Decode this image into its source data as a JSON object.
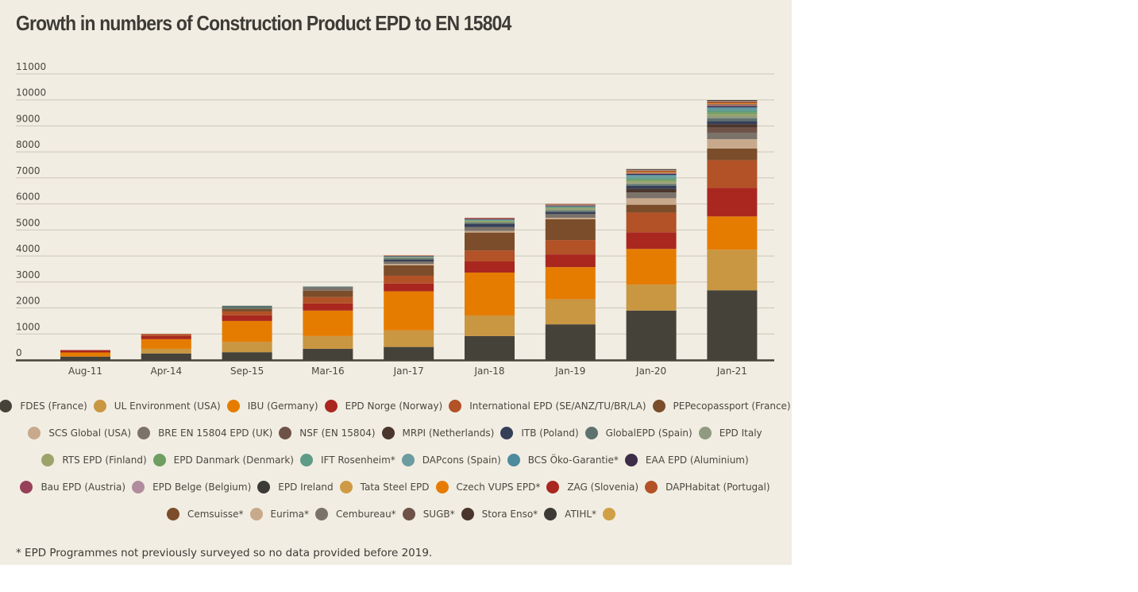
{
  "chart_data": {
    "type": "bar",
    "stacked": true,
    "title": "Growth in numbers of  Construction Product EPD to EN 15804",
    "xlabel": "",
    "ylabel": "",
    "ylim": [
      0,
      11000
    ],
    "yticks": [
      0,
      1000,
      2000,
      3000,
      4000,
      5000,
      6000,
      7000,
      8000,
      9000,
      10000,
      11000
    ],
    "ytick_labels": [
      "0",
      "1000",
      "2000",
      "3000",
      "4000",
      "5000",
      "6000",
      "7000",
      "8000",
      "9000",
      "10000",
      "11000"
    ],
    "grid": true,
    "legend_position": "bottom",
    "categories": [
      "Aug-11",
      "Apr-14",
      "Sep-15",
      "Mar-16",
      "Jan-17",
      "Jan-18",
      "Jan-19",
      "Jan-20",
      "Jan-21"
    ],
    "series": [
      {
        "name": "FDES (France)",
        "color": "#45423a",
        "values": [
          130,
          250,
          300,
          430,
          500,
          920,
          1370,
          1900,
          2680
        ]
      },
      {
        "name": "UL Environment (USA)",
        "color": "#c99642",
        "values": [
          0,
          180,
          400,
          490,
          640,
          790,
          970,
          1000,
          1560
        ]
      },
      {
        "name": "IBU (Germany)",
        "color": "#e57c00",
        "values": [
          160,
          370,
          800,
          980,
          1500,
          1650,
          1230,
          1370,
          1280
        ]
      },
      {
        "name": "EPD Norge (Norway)",
        "color": "#a9271f",
        "values": [
          90,
          120,
          215,
          275,
          300,
          430,
          490,
          640,
          1100
        ]
      },
      {
        "name": "International EPD (SE/ANZ/TU/BR/LA)",
        "color": "#b35127",
        "values": [
          0,
          80,
          150,
          245,
          300,
          420,
          550,
          760,
          1060
        ]
      },
      {
        "name": "PEPecopassport (France)",
        "color": "#7b4d2a",
        "values": [
          0,
          0,
          100,
          245,
          400,
          690,
          800,
          300,
          450
        ]
      },
      {
        "name": "SCS Global (USA)",
        "color": "#c8a98c",
        "values": [
          0,
          0,
          0,
          0,
          50,
          60,
          60,
          250,
          360
        ]
      },
      {
        "name": "BRE EN 15804 EPD (UK)",
        "color": "#7b736a",
        "values": [
          0,
          0,
          0,
          120,
          100,
          150,
          140,
          220,
          250
        ]
      },
      {
        "name": "NSF (EN 15804)",
        "color": "#6e5248",
        "values": [
          0,
          0,
          0,
          0,
          0,
          0,
          0,
          0,
          200
        ]
      },
      {
        "name": "MRPI (Netherlands)",
        "color": "#4a362c",
        "values": [
          0,
          0,
          0,
          0,
          0,
          0,
          0,
          140,
          130
        ]
      },
      {
        "name": "ITB (Poland)",
        "color": "#363f58",
        "values": [
          0,
          0,
          0,
          0,
          70,
          120,
          80,
          120,
          120
        ]
      },
      {
        "name": "GlobalEPD (Spain)",
        "color": "#5d726f",
        "values": [
          0,
          0,
          120,
          40,
          50,
          60,
          60,
          60,
          100
        ]
      },
      {
        "name": "EPD Italy",
        "color": "#8f9a80",
        "values": [
          0,
          0,
          0,
          0,
          0,
          0,
          40,
          60,
          90
        ]
      },
      {
        "name": "RTS EPD (Finland)",
        "color": "#9ba36b",
        "values": [
          0,
          0,
          0,
          0,
          30,
          40,
          40,
          60,
          70
        ]
      },
      {
        "name": "EPD Danmark (Denmark)",
        "color": "#6e9e62",
        "values": [
          0,
          0,
          0,
          0,
          0,
          30,
          40,
          60,
          80
        ]
      },
      {
        "name": "IFT Rosenheim*",
        "color": "#5e9c87",
        "values": [
          0,
          0,
          0,
          0,
          0,
          0,
          0,
          80,
          80
        ]
      },
      {
        "name": "DAPcons (Spain)",
        "color": "#6b9ca0",
        "values": [
          0,
          0,
          0,
          0,
          40,
          40,
          40,
          60,
          60
        ]
      },
      {
        "name": "BCS Öko-Garantie*",
        "color": "#4d8a9c",
        "values": [
          0,
          0,
          0,
          0,
          0,
          0,
          0,
          40,
          50
        ]
      },
      {
        "name": "EAA EPD (Aluminium)",
        "color": "#3d2d47",
        "values": [
          0,
          0,
          0,
          0,
          20,
          20,
          20,
          30,
          40
        ]
      },
      {
        "name": "Bau EPD (Austria)",
        "color": "#96405a",
        "values": [
          0,
          0,
          0,
          0,
          0,
          20,
          20,
          20,
          30
        ]
      },
      {
        "name": "EPD Belge (Belgium)",
        "color": "#b08c9e",
        "values": [
          0,
          0,
          0,
          0,
          0,
          10,
          10,
          10,
          20
        ]
      },
      {
        "name": "EPD Ireland",
        "color": "#3c3a35",
        "values": [
          0,
          0,
          0,
          0,
          0,
          0,
          10,
          10,
          20
        ]
      },
      {
        "name": "Tata Steel EPD",
        "color": "#cf9a45",
        "values": [
          0,
          0,
          0,
          0,
          0,
          0,
          10,
          20,
          20
        ]
      },
      {
        "name": "Czech VUPS EPD*",
        "color": "#e57c00",
        "values": [
          0,
          0,
          0,
          0,
          0,
          0,
          0,
          20,
          20
        ]
      },
      {
        "name": "ZAG (Slovenia)",
        "color": "#a9271f",
        "values": [
          0,
          0,
          0,
          0,
          0,
          0,
          0,
          10,
          20
        ]
      },
      {
        "name": "DAPHabitat (Portugal)",
        "color": "#b35127",
        "values": [
          0,
          0,
          0,
          0,
          20,
          20,
          20,
          20,
          20
        ]
      },
      {
        "name": "Cemsuisse*",
        "color": "#7b4d2a",
        "values": [
          0,
          0,
          0,
          0,
          0,
          0,
          0,
          20,
          20
        ]
      },
      {
        "name": "Eurima*",
        "color": "#c8a98c",
        "values": [
          0,
          0,
          0,
          0,
          0,
          0,
          0,
          10,
          10
        ]
      },
      {
        "name": "Cembureau*",
        "color": "#7b736a",
        "values": [
          0,
          0,
          0,
          0,
          0,
          0,
          0,
          10,
          10
        ]
      },
      {
        "name": "SUGB*",
        "color": "#6e5248",
        "values": [
          0,
          0,
          0,
          0,
          0,
          0,
          0,
          10,
          10
        ]
      },
      {
        "name": "Stora Enso*",
        "color": "#4a362c",
        "values": [
          0,
          0,
          0,
          0,
          0,
          0,
          0,
          30,
          30
        ]
      },
      {
        "name": "ATIHL*",
        "color": "#3c3a35",
        "values": [
          0,
          0,
          0,
          0,
          0,
          0,
          0,
          0,
          0
        ]
      },
      {
        "name": "",
        "color": "#d19f45",
        "values": [
          0,
          0,
          0,
          0,
          0,
          0,
          0,
          0,
          0
        ]
      }
    ]
  },
  "legend_rows": [
    [
      0,
      1,
      2,
      3,
      4,
      5
    ],
    [
      6,
      7,
      8,
      9,
      10,
      11,
      12
    ],
    [
      13,
      14,
      15,
      16,
      17,
      18
    ],
    [
      19,
      20,
      21,
      22,
      23,
      24,
      25
    ],
    [
      26,
      27,
      28,
      29,
      30,
      31,
      32
    ]
  ],
  "footnote": "* EPD Programmes not previously surveyed so no data provided before 2019."
}
